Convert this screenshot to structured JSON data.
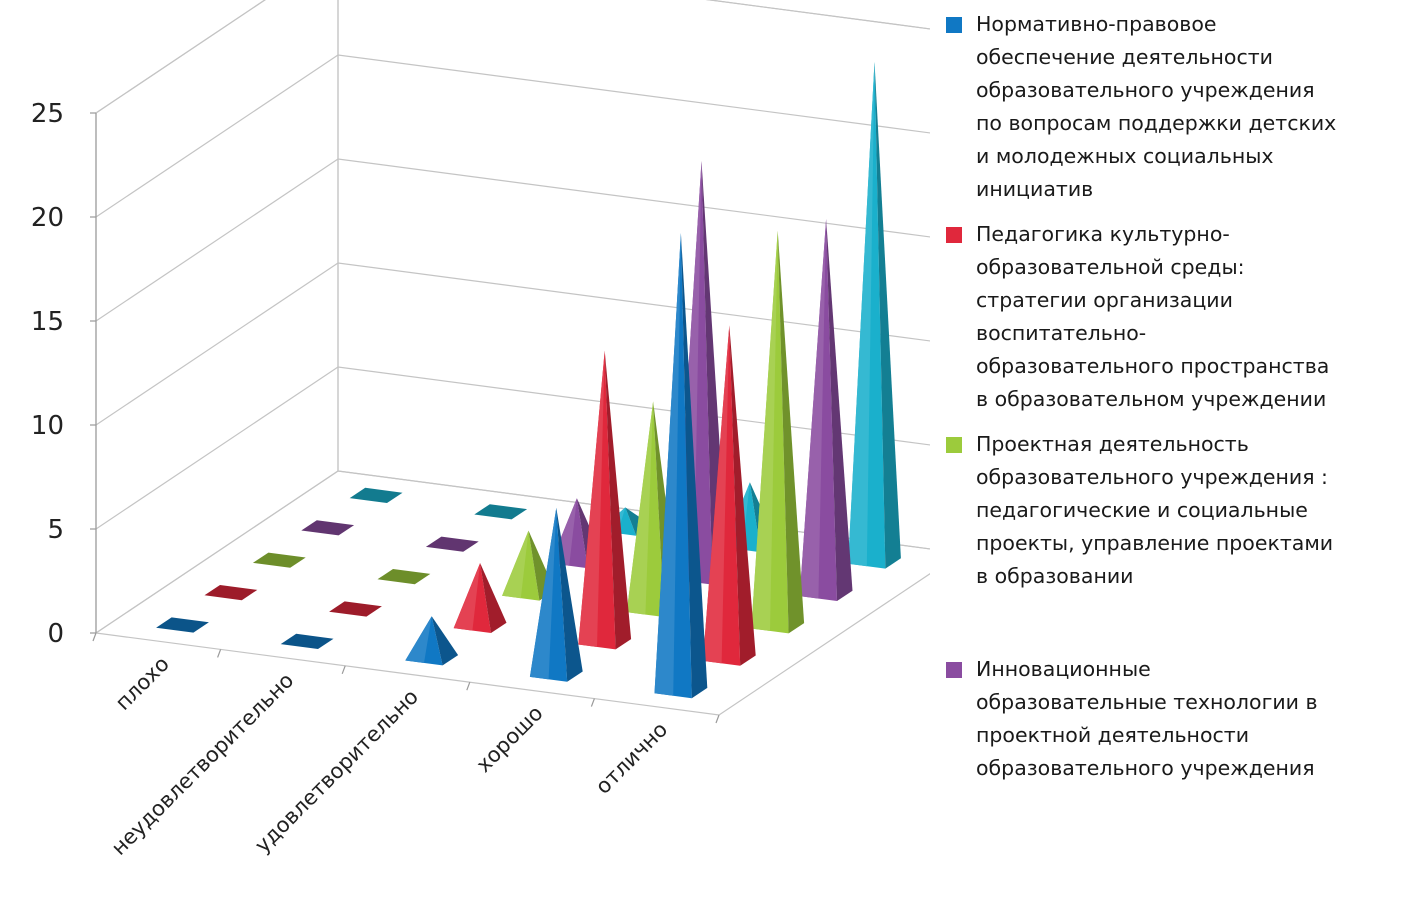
{
  "chart_data": {
    "type": "bar",
    "subtype": "3d-pyramid",
    "title": "",
    "xlabel": "",
    "ylabel": "",
    "ylim": [
      0,
      25
    ],
    "yticks": [
      0,
      5,
      10,
      15,
      20,
      25
    ],
    "grid": true,
    "legend_position": "right",
    "categories": [
      "плохо",
      "неудовлетворительно",
      "удовлетворительно",
      "хорошо",
      "отлично"
    ],
    "series": [
      {
        "name": "Нормативно-правовое\nобеспечение деятельности\nобразовательного учреждения\nпо вопросам поддержки детских\nи молодежных социальных\nинициатив",
        "color": "#1078c4",
        "values": [
          0,
          0,
          2,
          8,
          22
        ]
      },
      {
        "name": "Педагогика культурно-\nобразовательной среды:\nстратегии организации\nвоспитательно-\nобразовательного пространства\nв образовательном учреждении",
        "color": "#e0283c",
        "values": [
          0,
          0,
          3,
          14,
          16
        ]
      },
      {
        "name": "Проектная деятельность\nобразовательного учреждения :\nпедагогические и социальные\nпроекты, управление проектами\nв образовании",
        "color": "#9ccb3c",
        "values": [
          0,
          0,
          3,
          10,
          19
        ]
      },
      {
        "name": "Инновационные\nобразовательные технологии в\nпроектной деятельности\nобразовательного учреждения",
        "color": "#8a4ca0",
        "values": [
          0,
          0,
          3,
          20,
          18
        ]
      },
      {
        "name": "",
        "color": "#1ab0cc",
        "values": [
          0,
          0,
          1,
          3,
          24
        ]
      }
    ]
  }
}
